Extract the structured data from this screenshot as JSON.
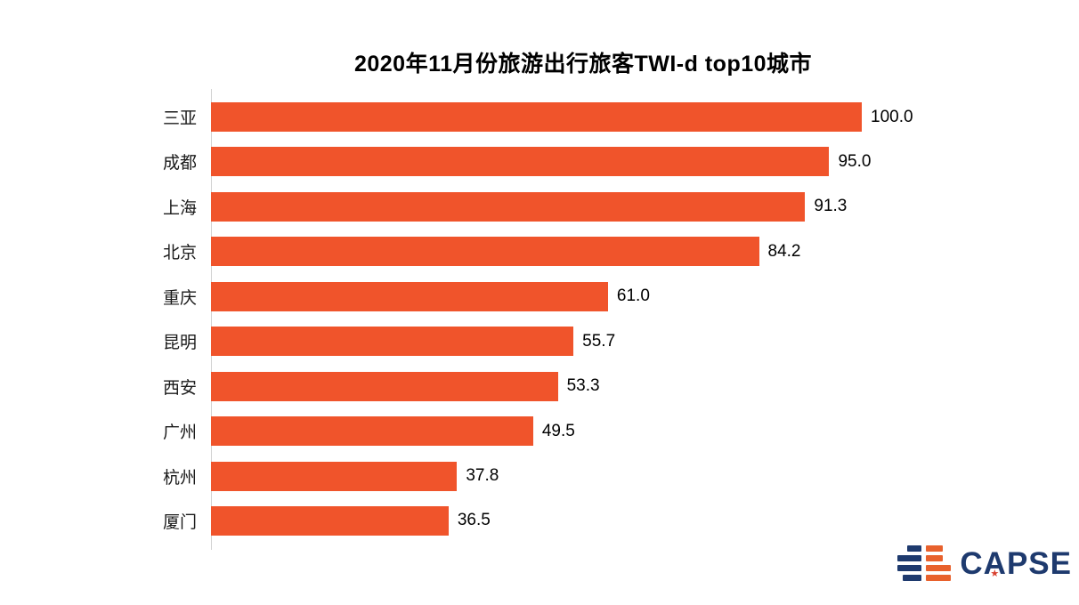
{
  "title": "2020年11月份旅游出行旅客TWI-d top10城市",
  "chart_data": {
    "type": "bar",
    "orientation": "horizontal",
    "title": "2020年11月份旅游出行旅客TWI-d top10城市",
    "categories": [
      "三亚",
      "成都",
      "上海",
      "北京",
      "重庆",
      "昆明",
      "西安",
      "广州",
      "杭州",
      "厦门"
    ],
    "values": [
      100.0,
      95.0,
      91.3,
      84.2,
      61.0,
      55.7,
      53.3,
      49.5,
      37.8,
      36.5
    ],
    "value_labels": [
      "100.0",
      "95.0",
      "91.3",
      "84.2",
      "61.0",
      "55.7",
      "53.3",
      "49.5",
      "37.8",
      "36.5"
    ],
    "xlabel": "",
    "ylabel": "",
    "xlim": [
      0,
      100
    ],
    "grid": false,
    "legend": false,
    "bar_color": "#f0542b",
    "axis_line_color": "#d3d3d3",
    "label_color": "#1a1a1a"
  },
  "logo": {
    "text": "CAPSE",
    "star": "★",
    "navy_color": "#1e3a6e",
    "orange_color": "#e8612c",
    "star_color": "#d8402e"
  }
}
